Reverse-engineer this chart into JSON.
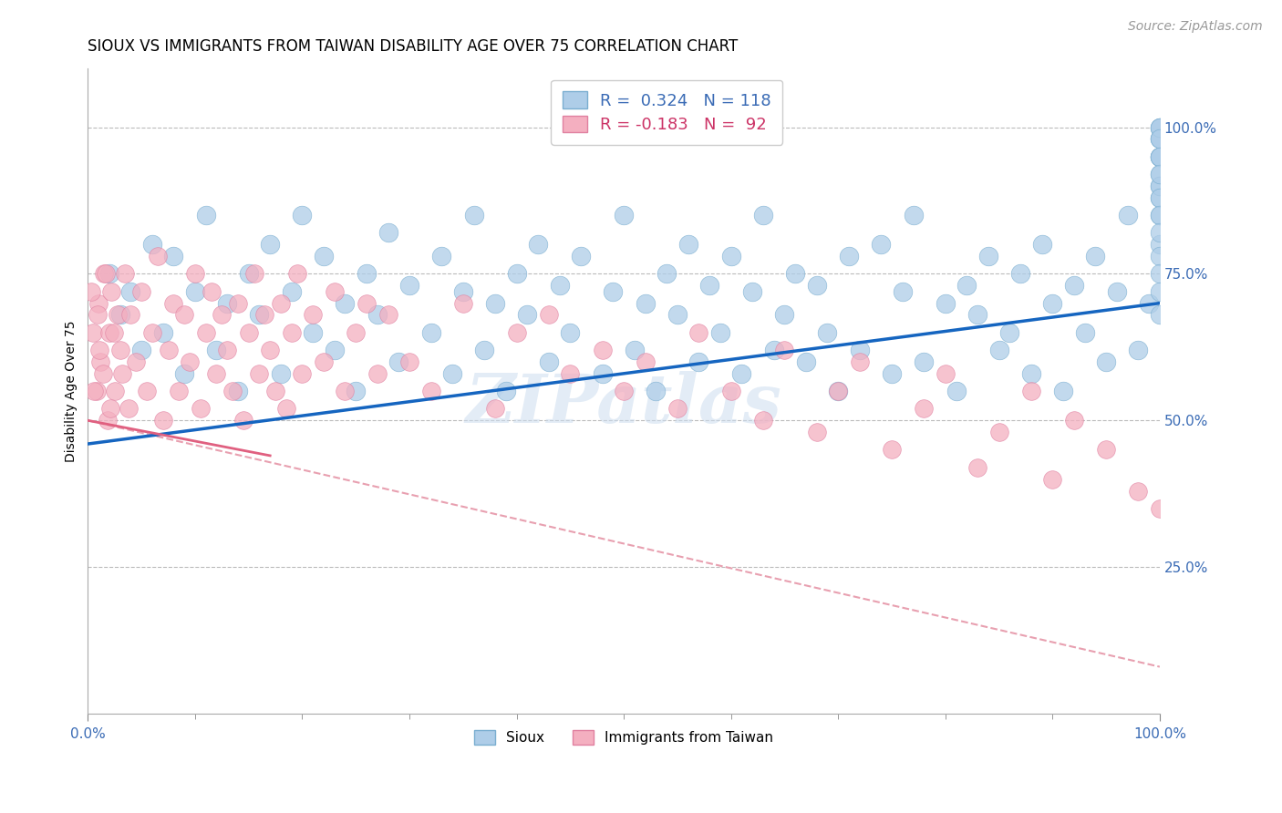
{
  "title": "SIOUX VS IMMIGRANTS FROM TAIWAN DISABILITY AGE OVER 75 CORRELATION CHART",
  "source": "Source: ZipAtlas.com",
  "ylabel": "Disability Age Over 75",
  "xlim": [
    0.0,
    100.0
  ],
  "ylim": [
    0.0,
    110.0
  ],
  "y_ticks": [
    25.0,
    50.0,
    75.0,
    100.0
  ],
  "y_tick_labels": [
    "25.0%",
    "50.0%",
    "75.0%",
    "100.0%"
  ],
  "x_ticks": [
    0.0,
    100.0
  ],
  "x_tick_labels": [
    "0.0%",
    "100.0%"
  ],
  "sioux_color": "#aecde8",
  "sioux_edge": "#7aaed0",
  "taiwan_color": "#f4afc0",
  "taiwan_edge": "#e080a0",
  "sioux_line_color": "#1565c0",
  "taiwan_line_color": "#e06080",
  "taiwan_dash_color": "#e8a0b0",
  "background_color": "#ffffff",
  "grid_color": "#bbbbbb",
  "watermark": "ZIPatlas",
  "title_fontsize": 12,
  "axis_label_fontsize": 10,
  "tick_fontsize": 11,
  "legend_fontsize": 13,
  "source_fontsize": 10,
  "sioux_line": {
    "x0": 0.0,
    "x1": 100.0,
    "y0": 46.0,
    "y1": 70.0
  },
  "taiwan_solid_line": {
    "x0": 0.0,
    "x1": 17.0,
    "y0": 50.0,
    "y1": 44.0
  },
  "taiwan_dash_line": {
    "x0": 0.0,
    "x1": 100.0,
    "y0": 50.0,
    "y1": 8.0
  },
  "sioux_x": [
    2,
    3,
    4,
    5,
    6,
    7,
    8,
    9,
    10,
    11,
    12,
    13,
    14,
    15,
    16,
    17,
    18,
    19,
    20,
    21,
    22,
    23,
    24,
    25,
    26,
    27,
    28,
    29,
    30,
    32,
    33,
    34,
    35,
    36,
    37,
    38,
    39,
    40,
    41,
    42,
    43,
    44,
    45,
    46,
    48,
    49,
    50,
    51,
    52,
    53,
    54,
    55,
    56,
    57,
    58,
    59,
    60,
    61,
    62,
    63,
    64,
    65,
    66,
    67,
    68,
    69,
    70,
    71,
    72,
    74,
    75,
    76,
    77,
    78,
    80,
    81,
    82,
    83,
    84,
    85,
    86,
    87,
    88,
    89,
    90,
    91,
    92,
    93,
    94,
    95,
    96,
    97,
    98,
    99,
    100,
    100,
    100,
    100,
    100,
    100,
    100,
    100,
    100,
    100,
    100,
    100,
    100,
    100,
    100,
    100,
    100,
    100,
    100,
    100,
    100,
    100,
    100,
    100
  ],
  "sioux_y": [
    75,
    68,
    72,
    62,
    80,
    65,
    78,
    58,
    72,
    85,
    62,
    70,
    55,
    75,
    68,
    80,
    58,
    72,
    85,
    65,
    78,
    62,
    70,
    55,
    75,
    68,
    82,
    60,
    73,
    65,
    78,
    58,
    72,
    85,
    62,
    70,
    55,
    75,
    68,
    80,
    60,
    73,
    65,
    78,
    58,
    72,
    85,
    62,
    70,
    55,
    75,
    68,
    80,
    60,
    73,
    65,
    78,
    58,
    72,
    85,
    62,
    68,
    75,
    60,
    73,
    65,
    55,
    78,
    62,
    80,
    58,
    72,
    85,
    60,
    70,
    55,
    73,
    68,
    78,
    62,
    65,
    75,
    58,
    80,
    70,
    55,
    73,
    65,
    78,
    60,
    72,
    85,
    62,
    70,
    100,
    98,
    95,
    90,
    100,
    95,
    98,
    88,
    92,
    100,
    95,
    90,
    85,
    80,
    98,
    95,
    92,
    88,
    85,
    82,
    78,
    75,
    72,
    68
  ],
  "taiwan_x": [
    0.5,
    0.8,
    1.0,
    1.2,
    1.5,
    1.8,
    2.0,
    2.2,
    2.5,
    2.8,
    3.0,
    3.2,
    3.5,
    3.8,
    4.0,
    4.5,
    5.0,
    5.5,
    6.0,
    6.5,
    7.0,
    7.5,
    8.0,
    8.5,
    9.0,
    9.5,
    10.0,
    10.5,
    11.0,
    11.5,
    12.0,
    12.5,
    13.0,
    13.5,
    14.0,
    14.5,
    15.0,
    15.5,
    16.0,
    16.5,
    17.0,
    17.5,
    18.0,
    18.5,
    19.0,
    19.5,
    20.0,
    21.0,
    22.0,
    23.0,
    24.0,
    25.0,
    26.0,
    27.0,
    28.0,
    30.0,
    32.0,
    35.0,
    38.0,
    40.0,
    43.0,
    45.0,
    48.0,
    50.0,
    52.0,
    55.0,
    57.0,
    60.0,
    63.0,
    65.0,
    68.0,
    70.0,
    72.0,
    75.0,
    78.0,
    80.0,
    83.0,
    85.0,
    88.0,
    90.0,
    92.0,
    95.0,
    98.0,
    100.0,
    0.3,
    0.6,
    0.9,
    1.1,
    1.4,
    1.7,
    2.1,
    2.4
  ],
  "taiwan_y": [
    65,
    55,
    70,
    60,
    75,
    50,
    65,
    72,
    55,
    68,
    62,
    58,
    75,
    52,
    68,
    60,
    72,
    55,
    65,
    78,
    50,
    62,
    70,
    55,
    68,
    60,
    75,
    52,
    65,
    72,
    58,
    68,
    62,
    55,
    70,
    50,
    65,
    75,
    58,
    68,
    62,
    55,
    70,
    52,
    65,
    75,
    58,
    68,
    60,
    72,
    55,
    65,
    70,
    58,
    68,
    60,
    55,
    70,
    52,
    65,
    68,
    58,
    62,
    55,
    60,
    52,
    65,
    55,
    50,
    62,
    48,
    55,
    60,
    45,
    52,
    58,
    42,
    48,
    55,
    40,
    50,
    45,
    38,
    35,
    72,
    55,
    68,
    62,
    58,
    75,
    52,
    65
  ]
}
